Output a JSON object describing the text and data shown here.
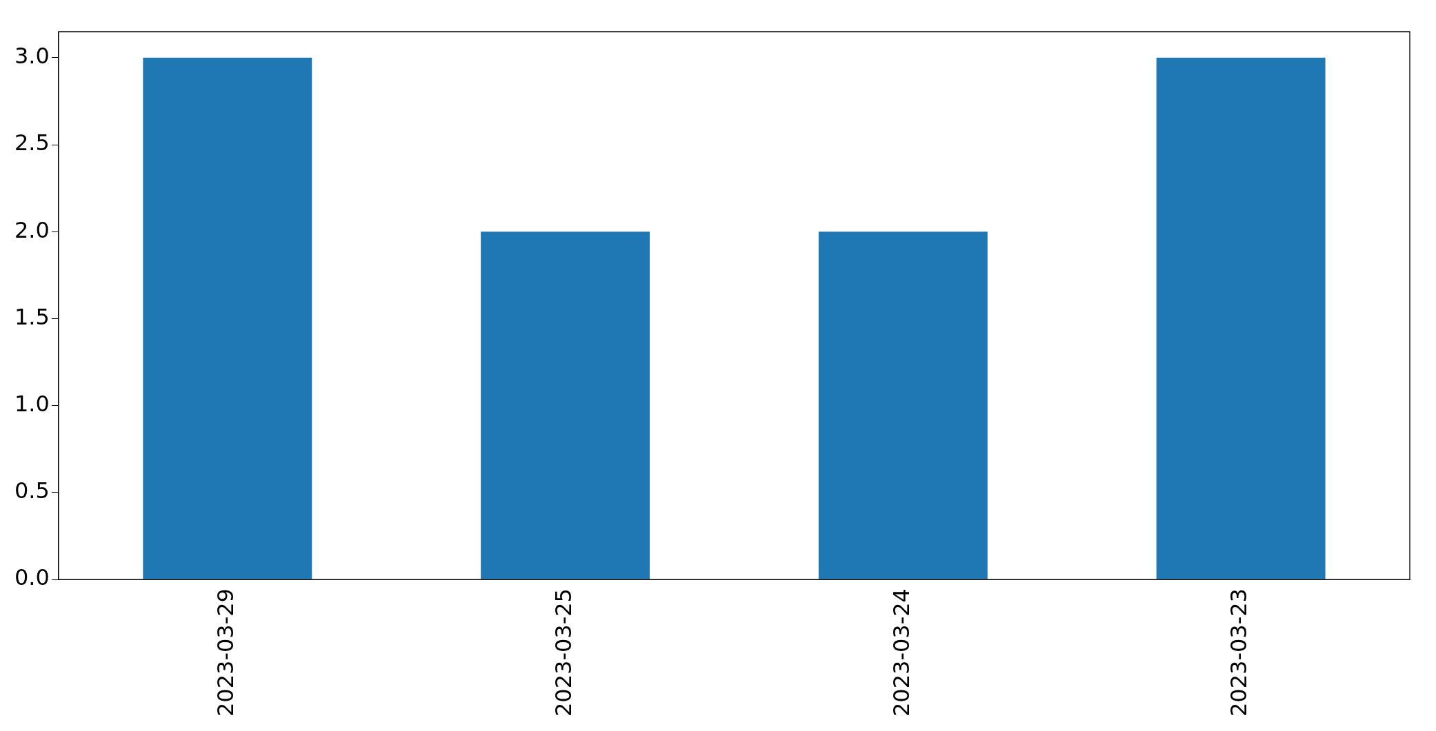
{
  "chart_data": {
    "type": "bar",
    "categories": [
      "2023-03-29",
      "2023-03-25",
      "2023-03-24",
      "2023-03-23"
    ],
    "values": [
      3,
      2,
      2,
      3
    ],
    "color": "#1f77b4",
    "ylim": [
      0,
      3.15
    ],
    "yticks": [
      {
        "value": 0,
        "label": "0.0"
      },
      0.5,
      {
        "value": 1,
        "label": "1.0"
      },
      1.5,
      {
        "value": 2,
        "label": "2.0"
      },
      2.5,
      {
        "value": 3,
        "label": "3.0"
      }
    ],
    "grid": false,
    "legend": false
  }
}
